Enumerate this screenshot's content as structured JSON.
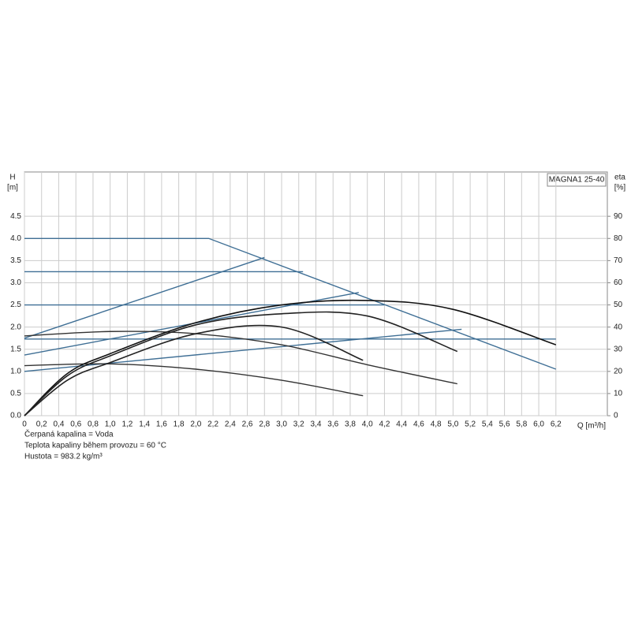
{
  "chart_data": {
    "type": "line",
    "title": "MAGNA1 25-40",
    "y_label": "H",
    "y_unit": "[m]",
    "y2_label": "eta",
    "y2_unit": "[%]",
    "x_label": "Q [m³/h]",
    "notes": [
      "Čerpaná kapalina = Voda",
      "Teplota kapaliny během provozu = 60 °C",
      "Hustota = 983.2 kg/m³"
    ],
    "xlim": [
      0,
      6.8
    ],
    "ylim": [
      0,
      5.5
    ],
    "y2lim": [
      0,
      110
    ],
    "grid": true,
    "xticks": [
      0,
      {
        "value": 0.2,
        "label": "0,2"
      },
      {
        "value": 0.4,
        "label": "0,4"
      },
      {
        "value": 0.6,
        "label": "0,6"
      },
      {
        "value": 0.8,
        "label": "0,8"
      },
      {
        "value": 1.0,
        "label": "1,0"
      },
      {
        "value": 1.2,
        "label": "1,2"
      },
      {
        "value": 1.4,
        "label": "1,4"
      },
      {
        "value": 1.6,
        "label": "1,6"
      },
      {
        "value": 1.8,
        "label": "1,8"
      },
      {
        "value": 2.0,
        "label": "2,0"
      },
      {
        "value": 2.2,
        "label": "2,2"
      },
      {
        "value": 2.4,
        "label": "2,4"
      },
      {
        "value": 2.6,
        "label": "2,6"
      },
      {
        "value": 2.8,
        "label": "2,8"
      },
      {
        "value": 3.0,
        "label": "3,0"
      },
      {
        "value": 3.2,
        "label": "3,2"
      },
      {
        "value": 3.4,
        "label": "3,4"
      },
      {
        "value": 3.6,
        "label": "3,6"
      },
      {
        "value": 3.8,
        "label": "3,8"
      },
      {
        "value": 4.0,
        "label": "4,0"
      },
      {
        "value": 4.2,
        "label": "4,2"
      },
      {
        "value": 4.4,
        "label": "4,4"
      },
      {
        "value": 4.6,
        "label": "4,6"
      },
      {
        "value": 4.8,
        "label": "4,8"
      },
      {
        "value": 5.0,
        "label": "5,0"
      },
      {
        "value": 5.2,
        "label": "5,2"
      },
      {
        "value": 5.4,
        "label": "5,4"
      },
      {
        "value": 5.6,
        "label": "5,6"
      },
      {
        "value": 5.8,
        "label": "5,8"
      },
      {
        "value": 6.0,
        "label": "6,0"
      },
      {
        "value": 6.2,
        "label": "6,2"
      }
    ],
    "yticks": [
      {
        "value": 0,
        "label": "0.0"
      },
      0.5,
      {
        "value": 1,
        "label": "1.0"
      },
      1.5,
      {
        "value": 2,
        "label": "2.0"
      },
      2.5,
      {
        "value": 3,
        "label": "3.0"
      },
      3.5,
      {
        "value": 4,
        "label": "4.0"
      },
      4.5
    ],
    "y2ticks": [
      0,
      10,
      20,
      30,
      40,
      50,
      60,
      70,
      80,
      90
    ],
    "series": [
      {
        "color": "#3f6f95",
        "x": [
          0,
          2.15,
          6.2
        ],
        "values": [
          4.0,
          4.0,
          1.05
        ]
      },
      {
        "color": "#3f6f95",
        "x": [
          0,
          2.8
        ],
        "values": [
          1.75,
          3.57
        ]
      },
      {
        "color": "#3f6f95",
        "x": [
          0,
          3.25
        ],
        "values": [
          3.25,
          3.25
        ]
      },
      {
        "color": "#3f6f95",
        "x": [
          0,
          4.2
        ],
        "values": [
          2.5,
          2.5
        ]
      },
      {
        "color": "#3f6f95",
        "x": [
          0,
          3.9
        ],
        "values": [
          1.37,
          2.78
        ]
      },
      {
        "color": "#3f6f95",
        "x": [
          0,
          6.2
        ],
        "values": [
          1.73,
          1.73
        ]
      },
      {
        "color": "#3f6f95",
        "x": [
          0,
          5.1
        ],
        "values": [
          1.0,
          1.95
        ]
      },
      {
        "color": "#333333",
        "x": [
          0,
          1,
          2,
          3,
          4,
          5.05
        ],
        "values": [
          1.8,
          1.9,
          1.85,
          1.6,
          1.15,
          0.72
        ]
      },
      {
        "color": "#333333",
        "x": [
          0,
          1,
          2,
          3,
          3.95
        ],
        "values": [
          1.13,
          1.17,
          1.05,
          0.8,
          0.45
        ]
      },
      {
        "color": "#111111",
        "axis": "y2",
        "x": [
          0,
          0.5,
          1,
          2,
          3,
          4,
          5,
          6.2
        ],
        "values": [
          0,
          19,
          28,
          42,
          50,
          52,
          48,
          32
        ]
      },
      {
        "color": "#222222",
        "axis": "y2",
        "x": [
          0,
          0.5,
          1,
          2,
          3,
          4,
          5.05
        ],
        "values": [
          0,
          18,
          27,
          41,
          46,
          45,
          29
        ]
      },
      {
        "color": "#222222",
        "axis": "y2",
        "x": [
          0,
          0.5,
          1,
          2,
          3,
          3.95
        ],
        "values": [
          0,
          16,
          24,
          37,
          40,
          25
        ]
      }
    ]
  }
}
